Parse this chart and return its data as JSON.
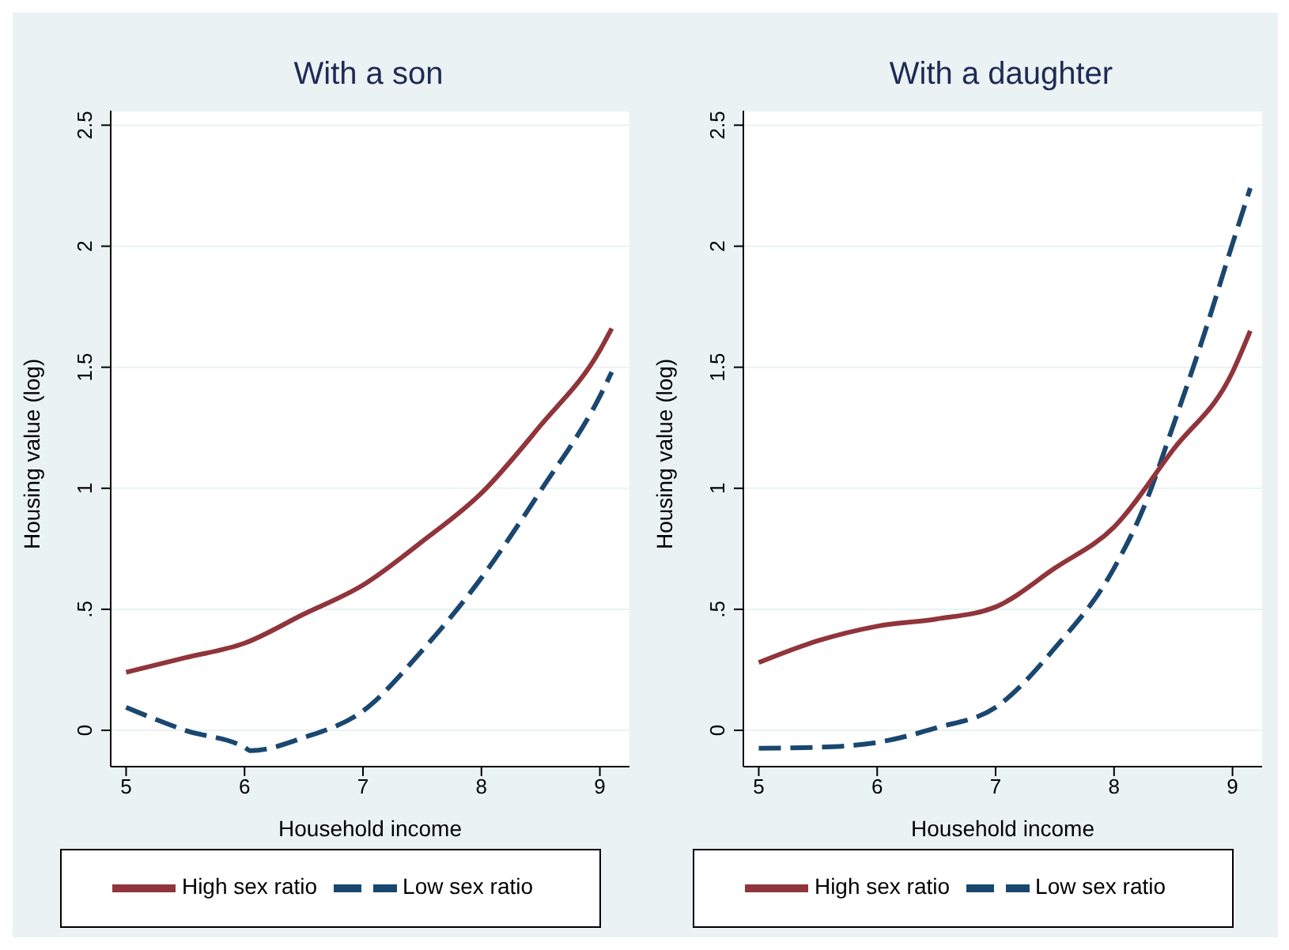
{
  "chart_data": [
    {
      "type": "line",
      "title": "With a son",
      "xlabel": "Household income",
      "ylabel": "Housing value (log)",
      "xlim": [
        4.87,
        9.25
      ],
      "xticks": [
        5,
        6,
        7,
        8,
        9
      ],
      "ylim": [
        -0.15,
        2.56
      ],
      "yticks": [
        0,
        {
          "value": 0.5,
          "label": ".5"
        },
        1,
        1.5,
        2,
        2.5
      ],
      "grid": "y",
      "legend": "bottom",
      "marker": "none",
      "series": [
        {
          "name": "Low sex ratio",
          "color": "#1a476f",
          "line_style": "dashed",
          "x": [
            5,
            5.5,
            6,
            6.05,
            6.5,
            7,
            7.5,
            8,
            8.5,
            9,
            9.1
          ],
          "values": [
            0.095,
            0.0,
            -0.07,
            -0.084,
            -0.03,
            0.08,
            0.33,
            0.63,
            0.99,
            1.38,
            1.48
          ]
        },
        {
          "name": "High sex ratio",
          "color": "#90353b",
          "line_style": "solid",
          "x": [
            5,
            5.5,
            6,
            6.5,
            7,
            7.5,
            8,
            8.5,
            9,
            9.1
          ],
          "values": [
            0.24,
            0.3,
            0.36,
            0.48,
            0.6,
            0.78,
            0.98,
            1.26,
            1.57,
            1.66
          ]
        }
      ]
    },
    {
      "type": "line",
      "title": "With a daughter",
      "xlabel": "Household income",
      "ylabel": "Housing value (log)",
      "xlim": [
        4.87,
        9.25
      ],
      "xticks": [
        5,
        6,
        7,
        8,
        9
      ],
      "ylim": [
        -0.15,
        2.56
      ],
      "yticks": [
        0,
        {
          "value": 0.5,
          "label": ".5"
        },
        1,
        1.5,
        2,
        2.5
      ],
      "grid": "y",
      "legend": "bottom",
      "marker": "none",
      "series": [
        {
          "name": "Low sex ratio",
          "color": "#1a476f",
          "line_style": "dashed",
          "x": [
            5,
            5.5,
            6,
            6.5,
            7,
            7.5,
            8,
            8.25,
            8.5,
            8.75,
            9,
            9.15
          ],
          "values": [
            -0.074,
            -0.07,
            -0.05,
            0.01,
            0.095,
            0.34,
            0.67,
            0.92,
            1.26,
            1.62,
            2.01,
            2.24
          ]
        },
        {
          "name": "High sex ratio",
          "color": "#90353b",
          "line_style": "solid",
          "x": [
            5,
            5.5,
            6,
            6.5,
            7,
            7.5,
            8,
            8.5,
            9,
            9.15
          ],
          "values": [
            0.28,
            0.37,
            0.43,
            0.46,
            0.51,
            0.67,
            0.84,
            1.16,
            1.48,
            1.65
          ]
        }
      ]
    }
  ]
}
